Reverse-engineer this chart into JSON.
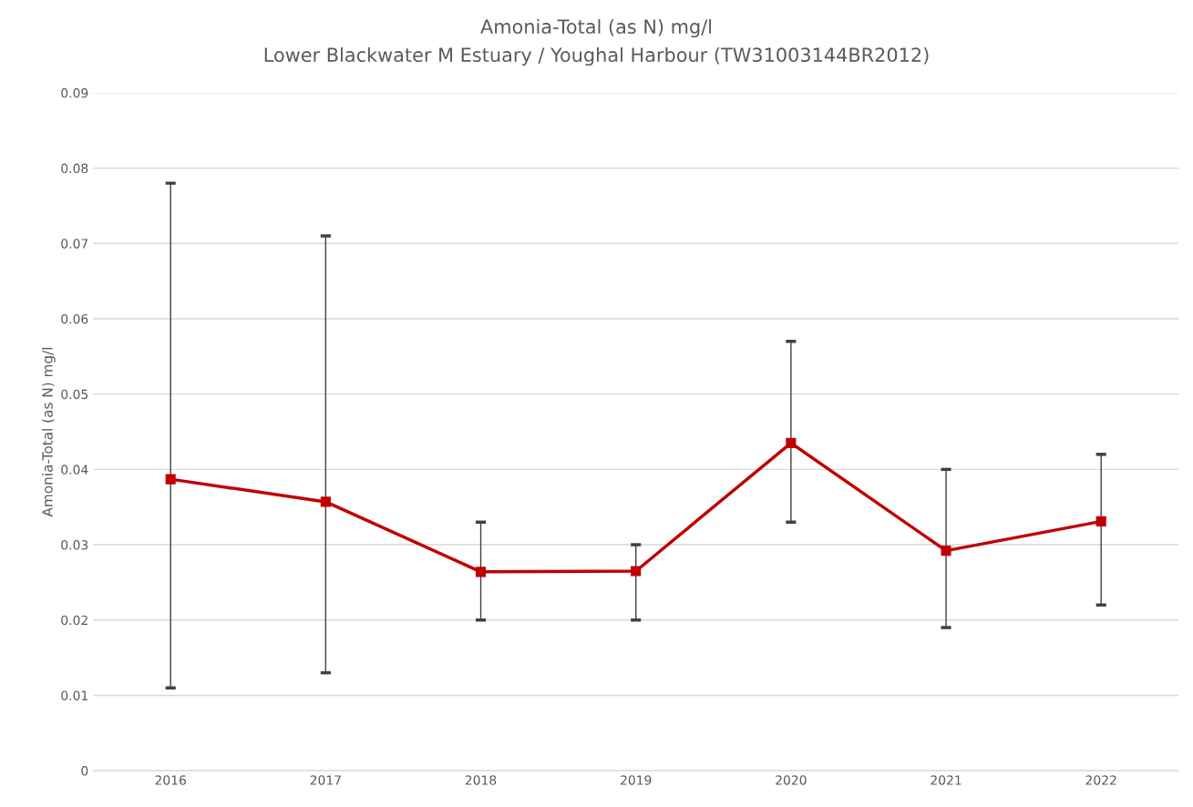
{
  "chart_data": {
    "type": "line",
    "title": "Amonia-Total (as N) mg/l",
    "subtitle": "Lower Blackwater M Estuary / Youghal Harbour (TW31003144BR2012)",
    "ylabel": "Amonia-Total (as N) mg/l",
    "categories": [
      "2016",
      "2017",
      "2018",
      "2019",
      "2020",
      "2021",
      "2022"
    ],
    "series": [
      {
        "color": "#c00000",
        "values": [
          0.0387,
          0.0357,
          0.0264,
          0.0265,
          0.0435,
          0.0292,
          0.0331
        ],
        "errors": [
          [
            0.011,
            0.078
          ],
          [
            0.013,
            0.071
          ],
          [
            0.02,
            0.033
          ],
          [
            0.02,
            0.03
          ],
          [
            0.033,
            0.057
          ],
          [
            0.019,
            0.04
          ],
          [
            0.022,
            0.042
          ]
        ]
      }
    ],
    "ylim": [
      0,
      0.09
    ],
    "yticks": [
      0,
      0.01,
      0.02,
      0.03,
      0.04,
      0.05,
      0.06,
      0.07,
      0.08,
      0.09
    ],
    "grid": "y",
    "marker": "square",
    "line_style": "solid",
    "legend": false
  }
}
